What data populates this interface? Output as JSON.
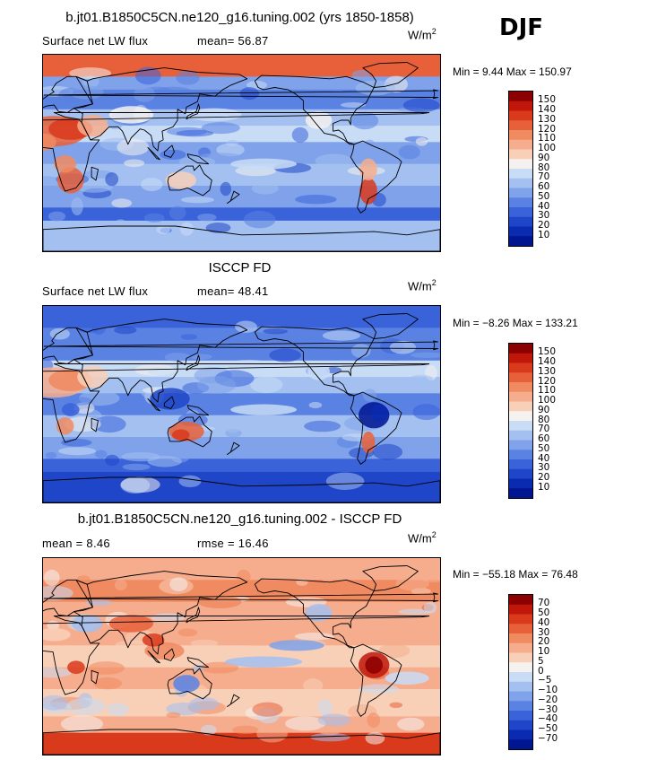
{
  "season": "DJF",
  "units_prefix": "W/m",
  "units_sup": "2",
  "panels": [
    {
      "id": "model",
      "title": "b.jt01.B1850C5CN.ne120_g16.tuning.002 (yrs 1850-1858)",
      "left_text": "Surface net LW flux",
      "right_text": "mean=  56.87",
      "minmax": "Min =    9.44  Max = 150.97",
      "map_name": "model-map",
      "theme": "model"
    },
    {
      "id": "obs",
      "title": "ISCCP FD",
      "left_text": "Surface net LW flux",
      "right_text": "mean=  48.41",
      "minmax": "Min =  −8.26  Max = 133.21",
      "map_name": "obs-map",
      "theme": "obs"
    },
    {
      "id": "diff",
      "title": "b.jt01.B1850C5CN.ne120_g16.tuning.002 - ISCCP FD",
      "left_text": "mean =   8.46",
      "right_text": "rmse =  16.46",
      "minmax": "Min = −55.18  Max =  76.48",
      "map_name": "diff-map",
      "theme": "diff"
    }
  ],
  "chart_data": [
    {
      "type": "heatmap",
      "title": "Surface net LW flux (model, DJF)",
      "mean": 56.87,
      "min": 9.44,
      "max": 150.97,
      "colorbar_levels": [
        "150",
        "140",
        "130",
        "120",
        "110",
        "100",
        "90",
        "80",
        "70",
        "60",
        "50",
        "40",
        "30",
        "20",
        "10"
      ],
      "colors": [
        "#8b0000",
        "#c0170a",
        "#d93a1c",
        "#e8603a",
        "#f08a60",
        "#f5ad8e",
        "#f8d0b8",
        "#f4f1ee",
        "#c8dcf6",
        "#a3c0f0",
        "#7fa2ea",
        "#5a82e2",
        "#3a63da",
        "#1f46c8",
        "#0a2ab0",
        "#001590"
      ]
    },
    {
      "type": "heatmap",
      "title": "Surface net LW flux (ISCCP FD, DJF)",
      "mean": 48.41,
      "min": -8.26,
      "max": 133.21,
      "colorbar_levels": [
        "150",
        "140",
        "130",
        "120",
        "110",
        "100",
        "90",
        "80",
        "70",
        "60",
        "50",
        "40",
        "30",
        "20",
        "10"
      ],
      "colors": [
        "#8b0000",
        "#c0170a",
        "#d93a1c",
        "#e8603a",
        "#f08a60",
        "#f5ad8e",
        "#f8d0b8",
        "#f4f1ee",
        "#c8dcf6",
        "#a3c0f0",
        "#7fa2ea",
        "#5a82e2",
        "#3a63da",
        "#1f46c8",
        "#0a2ab0",
        "#001590"
      ]
    },
    {
      "type": "heatmap",
      "title": "Model minus ISCCP FD (DJF)",
      "mean": 8.46,
      "rmse": 16.46,
      "min": -55.18,
      "max": 76.48,
      "colorbar_levels": [
        "70",
        "50",
        "40",
        "30",
        "20",
        "10",
        "5",
        "0",
        "−5",
        "−10",
        "−20",
        "−30",
        "−40",
        "−50",
        "−70"
      ],
      "colors": [
        "#8b0000",
        "#c0170a",
        "#d93a1c",
        "#e8603a",
        "#f08a60",
        "#f5ad8e",
        "#f8d0b8",
        "#f4f1ee",
        "#c8dcf6",
        "#a3c0f0",
        "#7fa2ea",
        "#5a82e2",
        "#3a63da",
        "#1f46c8",
        "#0a2ab0",
        "#001590"
      ]
    }
  ]
}
